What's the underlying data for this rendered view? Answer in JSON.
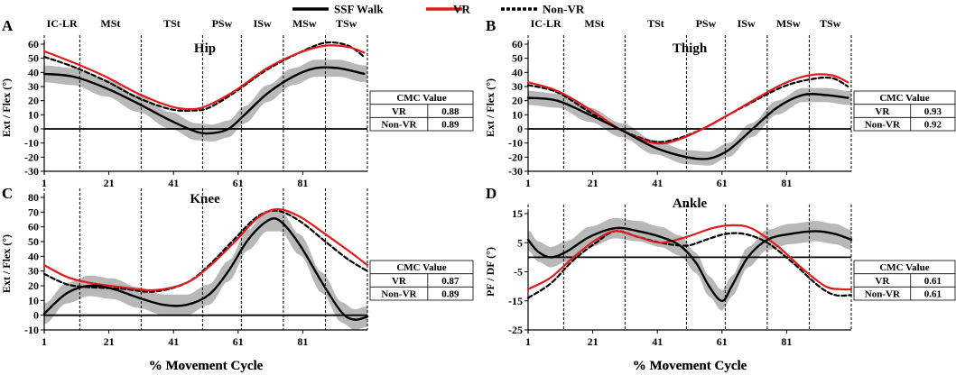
{
  "legend": [
    {
      "label": "SSF Walk",
      "color": "#000000",
      "style": "solid"
    },
    {
      "label": "VR",
      "color": "#e01b1b",
      "style": "solid"
    },
    {
      "label": "Non-VR",
      "color": "#000000",
      "style": "dashed"
    }
  ],
  "colors": {
    "band": "#b8b8b8",
    "ssf": "#000000",
    "vr": "#e01b1b",
    "nonvr": "#000000"
  },
  "xlabel": "% Movement Cycle",
  "phase_labels": [
    "IC-LR",
    "MSt",
    "TSt",
    "PSw",
    "ISw",
    "MSw",
    "TSw"
  ],
  "phase_boundaries": [
    12,
    31,
    50,
    62,
    75,
    88
  ],
  "cmc_header": "CMC Value",
  "chart_data": [
    {
      "letter": "A",
      "type": "line",
      "title": "Hip",
      "ylabel": "Ext / Flex (°)",
      "ylim": [
        -30,
        60
      ],
      "yticks": [
        -30,
        -20,
        -10,
        0,
        10,
        20,
        30,
        40,
        50,
        60
      ],
      "xlim": [
        1,
        101
      ],
      "xticks": [
        1,
        21,
        41,
        61,
        81
      ],
      "zero_line": 0,
      "band_width": 6,
      "series": {
        "ssf": [
          [
            1,
            39
          ],
          [
            10,
            37
          ],
          [
            20,
            29
          ],
          [
            30,
            18
          ],
          [
            40,
            6
          ],
          [
            48,
            -2
          ],
          [
            53,
            -3
          ],
          [
            58,
            0
          ],
          [
            63,
            10
          ],
          [
            70,
            25
          ],
          [
            78,
            37
          ],
          [
            85,
            43
          ],
          [
            92,
            43
          ],
          [
            100,
            39
          ]
        ],
        "vr": [
          [
            1,
            55
          ],
          [
            10,
            47
          ],
          [
            20,
            37
          ],
          [
            30,
            25
          ],
          [
            40,
            16
          ],
          [
            47,
            14
          ],
          [
            52,
            17
          ],
          [
            60,
            27
          ],
          [
            70,
            43
          ],
          [
            80,
            54
          ],
          [
            88,
            59
          ],
          [
            95,
            58
          ],
          [
            100,
            54
          ]
        ],
        "nonvr": [
          [
            1,
            51
          ],
          [
            10,
            44
          ],
          [
            20,
            34
          ],
          [
            30,
            22
          ],
          [
            40,
            14
          ],
          [
            47,
            13
          ],
          [
            52,
            15
          ],
          [
            60,
            26
          ],
          [
            70,
            42
          ],
          [
            80,
            54
          ],
          [
            88,
            61
          ],
          [
            95,
            59
          ],
          [
            100,
            51
          ]
        ]
      },
      "cmc": [
        {
          "label": "VR",
          "value": "0.88"
        },
        {
          "label": "Non-VR",
          "value": "0.89"
        }
      ]
    },
    {
      "letter": "B",
      "type": "line",
      "title": "Thigh",
      "ylabel": "Ext / Flex (°)",
      "ylim": [
        -30,
        60
      ],
      "yticks": [
        -30,
        -20,
        -10,
        0,
        10,
        20,
        30,
        40,
        50,
        60
      ],
      "xlim": [
        1,
        101
      ],
      "xticks": [
        1,
        21,
        41,
        61,
        81
      ],
      "zero_line": 0,
      "band_width": 5,
      "series": {
        "ssf": [
          [
            1,
            22
          ],
          [
            10,
            20
          ],
          [
            20,
            10
          ],
          [
            30,
            -1
          ],
          [
            40,
            -13
          ],
          [
            50,
            -20
          ],
          [
            57,
            -21
          ],
          [
            63,
            -15
          ],
          [
            70,
            -1
          ],
          [
            78,
            15
          ],
          [
            86,
            24
          ],
          [
            93,
            24
          ],
          [
            100,
            22
          ]
        ],
        "vr": [
          [
            1,
            33
          ],
          [
            10,
            27
          ],
          [
            20,
            14
          ],
          [
            30,
            -1
          ],
          [
            40,
            -10
          ],
          [
            47,
            -8
          ],
          [
            55,
            0
          ],
          [
            63,
            10
          ],
          [
            72,
            22
          ],
          [
            80,
            32
          ],
          [
            88,
            38
          ],
          [
            95,
            38
          ],
          [
            100,
            33
          ]
        ],
        "nonvr": [
          [
            1,
            31
          ],
          [
            10,
            26
          ],
          [
            20,
            12
          ],
          [
            30,
            -1
          ],
          [
            40,
            -9
          ],
          [
            47,
            -7
          ],
          [
            55,
            0
          ],
          [
            63,
            10
          ],
          [
            72,
            21
          ],
          [
            80,
            30
          ],
          [
            88,
            35
          ],
          [
            95,
            36
          ],
          [
            100,
            30
          ]
        ]
      },
      "cmc": [
        {
          "label": "VR",
          "value": "0.93"
        },
        {
          "label": "Non-VR",
          "value": "0.92"
        }
      ]
    },
    {
      "letter": "C",
      "type": "line",
      "title": "Knee",
      "ylabel": "Ext / Flex (°)",
      "ylim": [
        -10,
        80
      ],
      "yticks": [
        -10,
        0,
        10,
        20,
        30,
        40,
        50,
        60,
        70,
        80
      ],
      "xlim": [
        1,
        101
      ],
      "xticks": [
        1,
        21,
        41,
        61,
        81
      ],
      "zero_line": 0,
      "band_width": 7,
      "series": {
        "ssf": [
          [
            1,
            1
          ],
          [
            8,
            15
          ],
          [
            15,
            20
          ],
          [
            22,
            18
          ],
          [
            30,
            12
          ],
          [
            38,
            7
          ],
          [
            45,
            7
          ],
          [
            52,
            14
          ],
          [
            58,
            30
          ],
          [
            64,
            51
          ],
          [
            70,
            64
          ],
          [
            74,
            64
          ],
          [
            80,
            48
          ],
          [
            87,
            22
          ],
          [
            93,
            2
          ],
          [
            97,
            -3
          ],
          [
            101,
            -1
          ]
        ],
        "vr": [
          [
            1,
            34
          ],
          [
            8,
            26
          ],
          [
            15,
            22
          ],
          [
            25,
            19
          ],
          [
            35,
            17
          ],
          [
            45,
            22
          ],
          [
            52,
            33
          ],
          [
            60,
            50
          ],
          [
            67,
            66
          ],
          [
            73,
            72
          ],
          [
            80,
            67
          ],
          [
            88,
            55
          ],
          [
            95,
            44
          ],
          [
            101,
            34
          ]
        ],
        "nonvr": [
          [
            1,
            28
          ],
          [
            8,
            21
          ],
          [
            15,
            19
          ],
          [
            25,
            18
          ],
          [
            35,
            16
          ],
          [
            45,
            22
          ],
          [
            52,
            34
          ],
          [
            60,
            52
          ],
          [
            67,
            67
          ],
          [
            73,
            71
          ],
          [
            80,
            64
          ],
          [
            88,
            50
          ],
          [
            95,
            38
          ],
          [
            101,
            30
          ]
        ]
      },
      "cmc": [
        {
          "label": "VR",
          "value": "0.87"
        },
        {
          "label": "Non-VR",
          "value": "0.89"
        }
      ]
    },
    {
      "letter": "D",
      "type": "line",
      "title": "Ankle",
      "ylabel": "PF / DF (°)",
      "ylim": [
        -25,
        15
      ],
      "yticks": [
        -25,
        -15,
        -5,
        5,
        15
      ],
      "ytick_labels": [
        "-25",
        "-15",
        "-5",
        "5",
        "15"
      ],
      "xlim": [
        1,
        101
      ],
      "xticks": [
        1,
        21,
        41,
        61,
        81
      ],
      "zero_line": 0,
      "band_width": 3.5,
      "series": {
        "ssf": [
          [
            1,
            6
          ],
          [
            4,
            2
          ],
          [
            8,
            0
          ],
          [
            13,
            2
          ],
          [
            20,
            7
          ],
          [
            28,
            10
          ],
          [
            35,
            9
          ],
          [
            42,
            7
          ],
          [
            48,
            4
          ],
          [
            53,
            -2
          ],
          [
            57,
            -10
          ],
          [
            61,
            -15
          ],
          [
            64,
            -10
          ],
          [
            69,
            0
          ],
          [
            75,
            6
          ],
          [
            82,
            8
          ],
          [
            90,
            9
          ],
          [
            96,
            8
          ],
          [
            101,
            6
          ]
        ],
        "vr": [
          [
            1,
            -11
          ],
          [
            8,
            -7
          ],
          [
            15,
            0
          ],
          [
            22,
            6
          ],
          [
            28,
            9
          ],
          [
            35,
            7
          ],
          [
            42,
            5
          ],
          [
            50,
            7
          ],
          [
            58,
            10
          ],
          [
            64,
            11
          ],
          [
            70,
            10
          ],
          [
            78,
            4
          ],
          [
            86,
            -4
          ],
          [
            93,
            -10
          ],
          [
            98,
            -11
          ],
          [
            101,
            -11
          ]
        ],
        "nonvr": [
          [
            1,
            -14
          ],
          [
            8,
            -9
          ],
          [
            15,
            -1
          ],
          [
            22,
            5
          ],
          [
            28,
            9
          ],
          [
            35,
            7
          ],
          [
            42,
            5
          ],
          [
            50,
            4
          ],
          [
            56,
            6
          ],
          [
            62,
            8
          ],
          [
            68,
            8
          ],
          [
            75,
            5
          ],
          [
            83,
            -2
          ],
          [
            91,
            -10
          ],
          [
            96,
            -13
          ],
          [
            101,
            -13
          ]
        ]
      },
      "cmc": [
        {
          "label": "VR",
          "value": "0.61"
        },
        {
          "label": "Non-VR",
          "value": "0.61"
        }
      ]
    }
  ]
}
